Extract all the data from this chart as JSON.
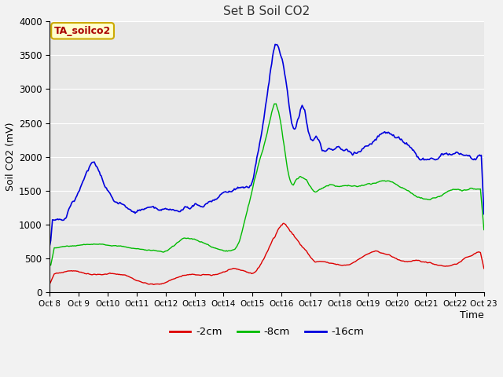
{
  "title": "Set B Soil CO2",
  "xlabel": "Time",
  "ylabel": "Soil CO2 (mV)",
  "ylim": [
    0,
    4000
  ],
  "xlim": [
    0,
    15
  ],
  "bg_color": "#e8e8e8",
  "fig_color": "#f2f2f2",
  "label_box_text": "TA_soilco2",
  "label_box_facecolor": "#ffffcc",
  "label_box_edgecolor": "#ccaa00",
  "label_box_textcolor": "#aa0000",
  "series": [
    {
      "label": "-2cm",
      "color": "#dd0000",
      "linewidth": 1.0
    },
    {
      "label": "-8cm",
      "color": "#00bb00",
      "linewidth": 1.0
    },
    {
      "label": "-16cm",
      "color": "#0000dd",
      "linewidth": 1.2
    }
  ],
  "xtick_labels": [
    "Oct 8",
    "Oct 9",
    "Oct 10",
    "Oct 11",
    "Oct 12",
    "Oct 13",
    "Oct 14",
    "Oct 15",
    "Oct 16",
    "Oct 17",
    "Oct 18",
    "Oct 19",
    "Oct 20",
    "Oct 21",
    "Oct 22",
    "Oct 23"
  ],
  "ytick_values": [
    0,
    500,
    1000,
    1500,
    2000,
    2500,
    3000,
    3500,
    4000
  ],
  "grid_color": "#ffffff"
}
